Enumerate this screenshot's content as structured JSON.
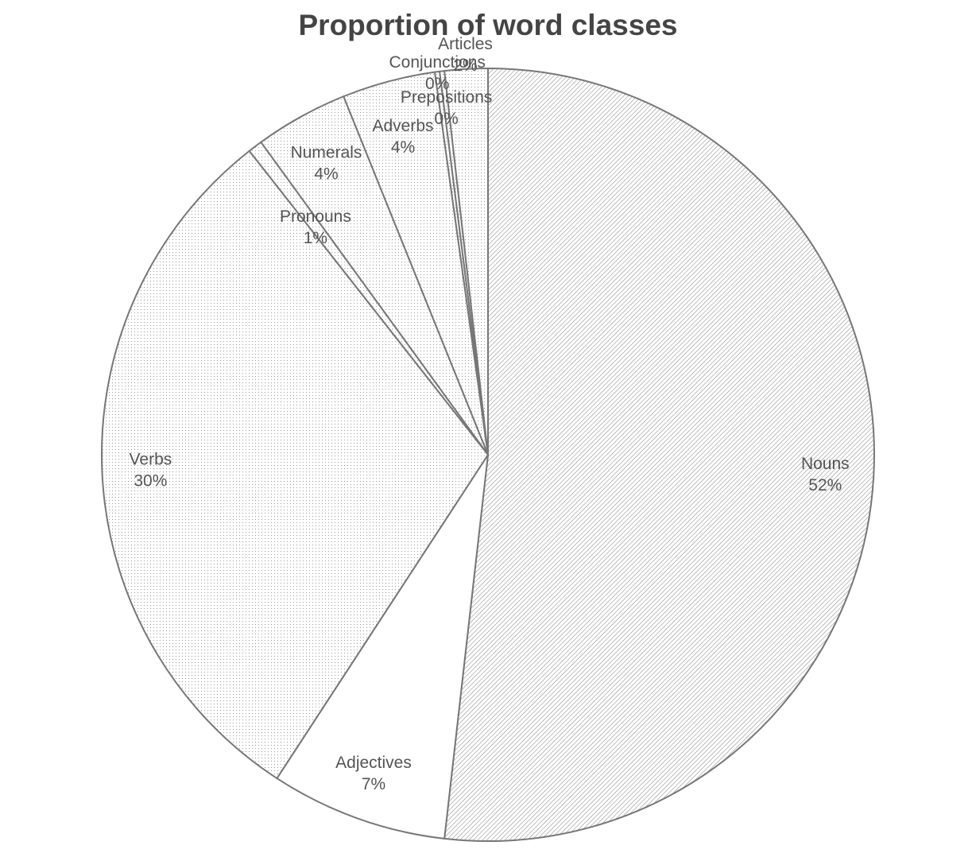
{
  "chart_data": {
    "type": "pie",
    "title": "Proportion of word classes",
    "start_angle_deg": 0,
    "direction": "clockwise",
    "slices": [
      {
        "label": "Nouns",
        "value": 51.8,
        "value_label": "52%",
        "pattern": "hatch-dense"
      },
      {
        "label": "Adjectives",
        "value": 7.4,
        "value_label": "7%",
        "pattern": "none"
      },
      {
        "label": "Verbs",
        "value": 30.2,
        "value_label": "30%",
        "pattern": "dots-fine"
      },
      {
        "label": "Pronouns",
        "value": 0.6,
        "value_label": "1%",
        "pattern": "dots-fine"
      },
      {
        "label": "Numerals",
        "value": 3.9,
        "value_label": "4%",
        "pattern": "dots-fine"
      },
      {
        "label": "Adverbs",
        "value": 3.9,
        "value_label": "4%",
        "pattern": "dots-fine"
      },
      {
        "label": "Conjunctions",
        "value": 0.2,
        "value_label": "0%",
        "pattern": "dots-fine"
      },
      {
        "label": "Prepositions",
        "value": 0.2,
        "value_label": "0%",
        "pattern": "dots-fine"
      },
      {
        "label": "Articles",
        "value": 1.8,
        "value_label": "2%",
        "pattern": "dots-fine"
      }
    ],
    "colors": {
      "outline": "#777777",
      "pattern": "#8a8a8a",
      "title": "#444444",
      "label": "#555555"
    }
  }
}
